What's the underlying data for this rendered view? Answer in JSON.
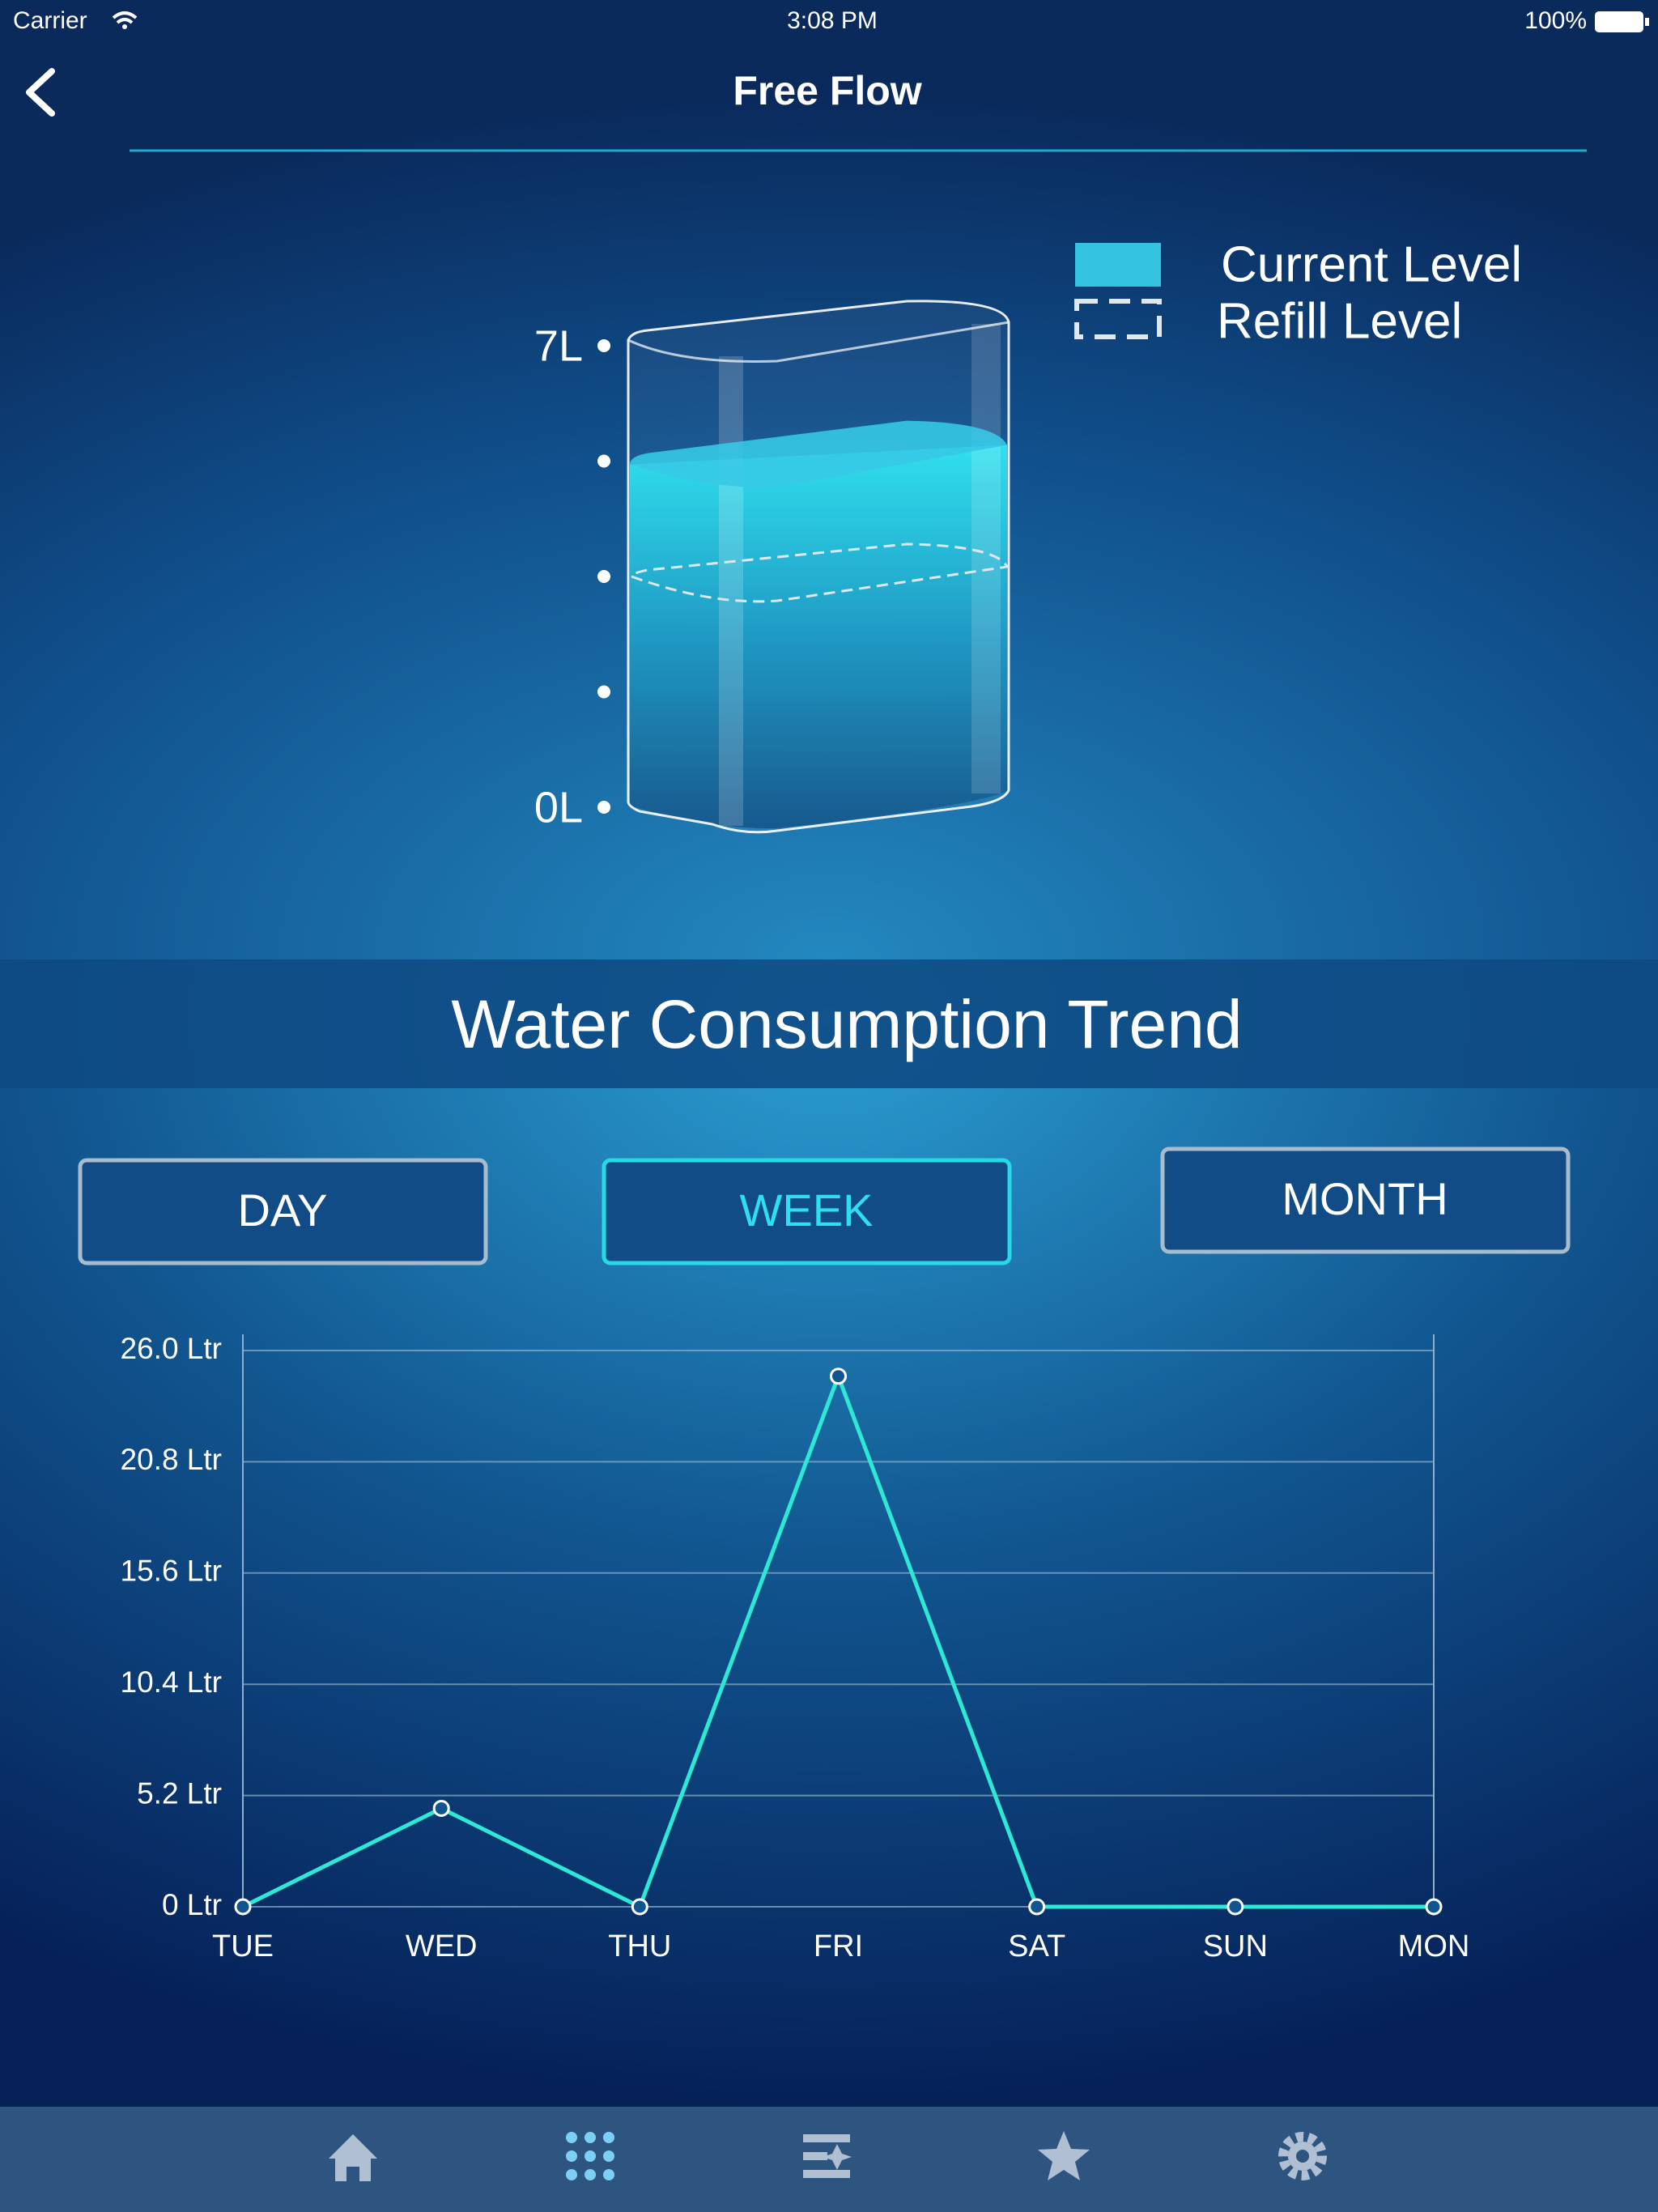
{
  "status_bar": {
    "carrier": "Carrier",
    "time": "3:08 PM",
    "battery": "100%"
  },
  "nav": {
    "title": "Free Flow"
  },
  "tank": {
    "ylim": [
      0,
      7
    ],
    "yticks": [
      {
        "value": 0,
        "label": "0L"
      },
      {
        "value": 1.75,
        "label": null
      },
      {
        "value": 3.5,
        "label": null
      },
      {
        "value": 5.25,
        "label": null
      },
      {
        "value": 7,
        "label": "7L"
      }
    ],
    "current_level": 5.2,
    "refill_level": 3.5,
    "color": "#33c3e0"
  },
  "legend": {
    "current": "Current Level",
    "refill": "Refill Level"
  },
  "section_title": "Water Consumption Trend",
  "period_buttons": [
    {
      "label": "DAY",
      "selected": false
    },
    {
      "label": "WEEK",
      "selected": true
    },
    {
      "label": "MONTH",
      "selected": false
    }
  ],
  "chart_data": {
    "type": "line",
    "categories": [
      "TUE",
      "WED",
      "THU",
      "FRI",
      "SAT",
      "SUN",
      "MON"
    ],
    "values": [
      0,
      4.6,
      0,
      24.8,
      0,
      0,
      0
    ],
    "color": "#2ee8d6",
    "ylim": [
      0,
      26
    ],
    "yticks": [
      {
        "value": 0,
        "label": "0 Ltr"
      },
      {
        "value": 5.2,
        "label": "5.2 Ltr"
      },
      {
        "value": 10.4,
        "label": "10.4 Ltr"
      },
      {
        "value": 15.6,
        "label": "15.6 Ltr"
      },
      {
        "value": 20.8,
        "label": "20.8 Ltr"
      },
      {
        "value": 26,
        "label": "26.0 Ltr"
      }
    ],
    "grid": true
  }
}
